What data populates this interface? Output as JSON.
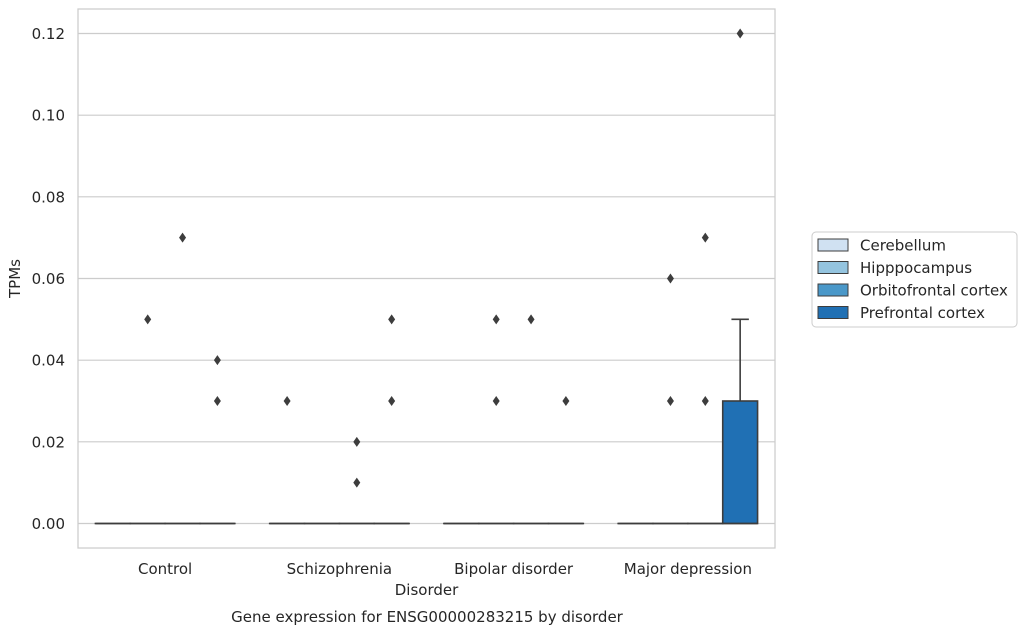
{
  "chart_data": {
    "type": "box",
    "title": "",
    "caption": "Gene expression for ENSG00000283215 by disorder",
    "xlabel": "Disorder",
    "ylabel": "TPMs",
    "ylim": [
      -0.006,
      0.126
    ],
    "yticks": [
      0.0,
      0.02,
      0.04,
      0.06,
      0.08,
      0.1,
      0.12
    ],
    "ytick_labels": [
      "0.00",
      "0.02",
      "0.04",
      "0.06",
      "0.08",
      "0.10",
      "0.12"
    ],
    "grid": "horizontal",
    "legend_position": "right",
    "categories": [
      "Control",
      "Schizophrenia",
      "Bipolar disorder",
      "Major depression"
    ],
    "series": [
      {
        "name": "Cerebellum",
        "color": "#d0e1f2",
        "boxes": [
          {
            "q1": 0,
            "median": 0,
            "q3": 0,
            "whisker_low": 0,
            "whisker_high": 0,
            "outliers": []
          },
          {
            "q1": 0,
            "median": 0,
            "q3": 0,
            "whisker_low": 0,
            "whisker_high": 0,
            "outliers": [
              0.03
            ]
          },
          {
            "q1": 0,
            "median": 0,
            "q3": 0,
            "whisker_low": 0,
            "whisker_high": 0,
            "outliers": []
          },
          {
            "q1": 0,
            "median": 0,
            "q3": 0,
            "whisker_low": 0,
            "whisker_high": 0,
            "outliers": []
          }
        ]
      },
      {
        "name": "Hipppocampus",
        "color": "#94c4df",
        "boxes": [
          {
            "q1": 0,
            "median": 0,
            "q3": 0,
            "whisker_low": 0,
            "whisker_high": 0,
            "outliers": [
              0.05
            ]
          },
          {
            "q1": 0,
            "median": 0,
            "q3": 0,
            "whisker_low": 0,
            "whisker_high": 0,
            "outliers": []
          },
          {
            "q1": 0,
            "median": 0,
            "q3": 0,
            "whisker_low": 0,
            "whisker_high": 0,
            "outliers": [
              0.03,
              0.05
            ]
          },
          {
            "q1": 0,
            "median": 0,
            "q3": 0,
            "whisker_low": 0,
            "whisker_high": 0,
            "outliers": [
              0.03,
              0.06
            ]
          }
        ]
      },
      {
        "name": "Orbitofrontal cortex",
        "color": "#4a98c9",
        "boxes": [
          {
            "q1": 0,
            "median": 0,
            "q3": 0,
            "whisker_low": 0,
            "whisker_high": 0,
            "outliers": [
              0.07
            ]
          },
          {
            "q1": 0,
            "median": 0,
            "q3": 0,
            "whisker_low": 0,
            "whisker_high": 0,
            "outliers": [
              0.01,
              0.02
            ]
          },
          {
            "q1": 0,
            "median": 0,
            "q3": 0,
            "whisker_low": 0,
            "whisker_high": 0,
            "outliers": [
              0.05
            ]
          },
          {
            "q1": 0,
            "median": 0,
            "q3": 0,
            "whisker_low": 0,
            "whisker_high": 0,
            "outliers": [
              0.03,
              0.07
            ]
          }
        ]
      },
      {
        "name": "Prefrontal cortex",
        "color": "#2070b4",
        "boxes": [
          {
            "q1": 0,
            "median": 0,
            "q3": 0,
            "whisker_low": 0,
            "whisker_high": 0,
            "outliers": [
              0.03,
              0.04
            ]
          },
          {
            "q1": 0,
            "median": 0,
            "q3": 0,
            "whisker_low": 0,
            "whisker_high": 0,
            "outliers": [
              0.03,
              0.05
            ]
          },
          {
            "q1": 0,
            "median": 0,
            "q3": 0,
            "whisker_low": 0,
            "whisker_high": 0,
            "outliers": [
              0.03
            ]
          },
          {
            "q1": 0,
            "median": 0,
            "q3": 0.03,
            "whisker_low": 0,
            "whisker_high": 0.05,
            "outliers": [
              0.12
            ]
          }
        ]
      }
    ]
  }
}
